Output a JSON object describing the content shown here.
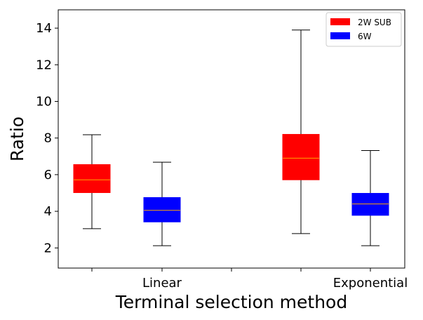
{
  "chart_data": {
    "type": "boxplot",
    "title": "",
    "xlabel": "Terminal selection method",
    "ylabel": "Ratio",
    "ylim": [
      0.9,
      15.0
    ],
    "yticks": [
      2,
      4,
      6,
      8,
      10,
      12,
      14
    ],
    "categories": [
      "Linear",
      "Exponential"
    ],
    "series": [
      {
        "name": "2W SUB",
        "color": "#ff0000",
        "boxes": [
          {
            "category": "Linear",
            "whisker_low": 3.05,
            "q1": 5.02,
            "median": 5.72,
            "q3": 6.55,
            "whisker_high": 8.18
          },
          {
            "category": "Exponential",
            "whisker_low": 2.78,
            "q1": 5.72,
            "median": 6.9,
            "q3": 8.2,
            "whisker_high": 13.9
          }
        ]
      },
      {
        "name": "6W",
        "color": "#0000ff",
        "boxes": [
          {
            "category": "Linear",
            "whisker_low": 2.12,
            "q1": 3.42,
            "median": 4.05,
            "q3": 4.75,
            "whisker_high": 6.68
          },
          {
            "category": "Exponential",
            "whisker_low": 2.12,
            "q1": 3.78,
            "median": 4.4,
            "q3": 4.98,
            "whisker_high": 7.32
          }
        ]
      }
    ],
    "median_color": "#ffa500",
    "grid": false,
    "legend_position": "top-right"
  }
}
